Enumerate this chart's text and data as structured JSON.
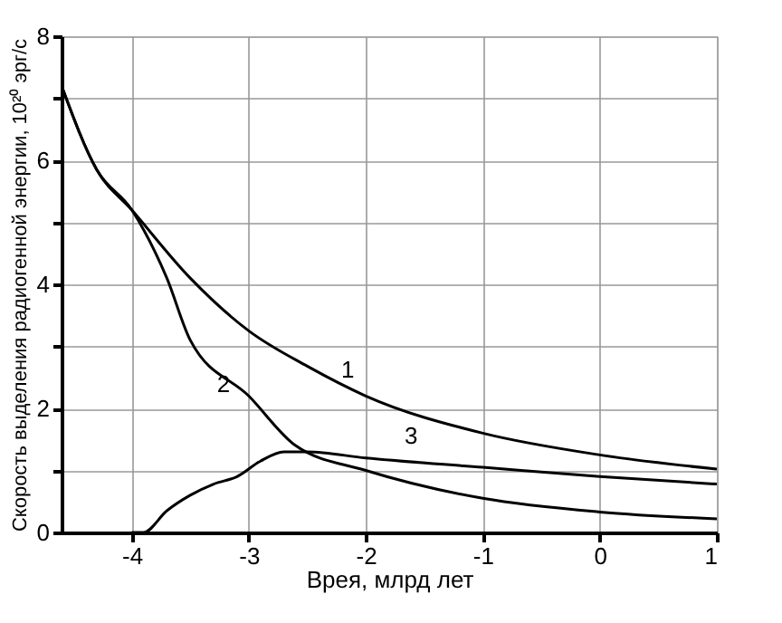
{
  "chart_data": {
    "type": "line",
    "xlabel": "Врея, млрд лет",
    "ylabel": "Скорость выделения радиогенной энергии, 10²⁰ эрг/с",
    "xlim": [
      -4.6,
      1
    ],
    "xticks": [
      -4,
      -3,
      -2,
      -1,
      0,
      1
    ],
    "ylim": [
      0,
      8
    ],
    "yticks": [
      0,
      {
        "value": 1,
        "label": null
      },
      2,
      {
        "value": 3,
        "label": null
      },
      4,
      {
        "value": 5,
        "label": null
      },
      6,
      {
        "value": 7,
        "label": null
      },
      8
    ],
    "grid": true,
    "legend": false,
    "marker": "none",
    "line_style": "solid",
    "series": [
      {
        "name": "1",
        "color": "#000000",
        "x": [
          -4.6,
          -4.3,
          -4,
          -3.5,
          -3,
          -2.5,
          -2,
          -1,
          0,
          1
        ],
        "values": [
          7.2,
          5.85,
          5.2,
          4.1,
          3.25,
          2.68,
          2.2,
          1.6,
          1.25,
          1.02
        ]
      },
      {
        "name": "2",
        "color": "#000000",
        "x": [
          -4.6,
          -4.3,
          -4,
          -3.7,
          -3.5,
          -3,
          -2.6,
          -2,
          -1,
          0,
          1
        ],
        "values": [
          7.2,
          5.85,
          5.2,
          4.1,
          3.1,
          2.2,
          1.4,
          1.0,
          0.55,
          0.33,
          0.22
        ]
      },
      {
        "name": "3",
        "color": "#000000",
        "x": [
          -4.0,
          -3.9,
          -3.7,
          -3.5,
          -3.3,
          -3.1,
          -2.9,
          -2.7,
          -2.5,
          -2,
          -1,
          0,
          1
        ],
        "values": [
          0,
          0,
          0.35,
          0.6,
          0.78,
          0.9,
          1.15,
          1.3,
          1.3,
          1.2,
          1.05,
          0.9,
          0.78
        ]
      }
    ]
  }
}
